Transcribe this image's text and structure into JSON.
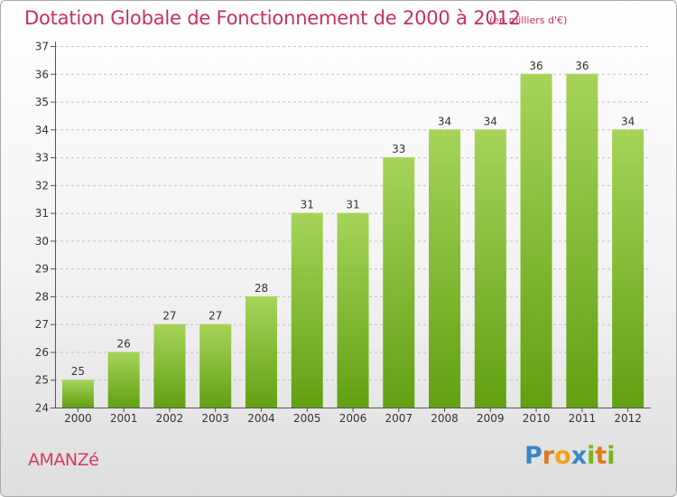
{
  "header": {
    "title": "Dotation Globale de Fonctionnement de 2000 à 2012",
    "subtitle": "(en milliers d'€)"
  },
  "footer": {
    "commune": "AMANZé",
    "logo_text": "Proxiti",
    "logo_letters": [
      {
        "ch": "P",
        "color": "#3a86c8"
      },
      {
        "ch": "r",
        "color": "#e07a1e"
      },
      {
        "ch": "o",
        "color": "#f0a21a"
      },
      {
        "ch": "x",
        "color": "#3a86c8"
      },
      {
        "ch": "i",
        "color": "#7ab51d"
      },
      {
        "ch": "t",
        "color": "#e07a1e"
      },
      {
        "ch": "i",
        "color": "#7ab51d"
      }
    ]
  },
  "colors": {
    "bar_top": "#a6d45a",
    "bar_bottom": "#62a012",
    "title": "#c8315a"
  },
  "chart_data": {
    "type": "bar",
    "title": "Dotation Globale de Fonctionnement de 2000 à 2012",
    "subtitle": "(en milliers d'€)",
    "categories": [
      "2000",
      "2001",
      "2002",
      "2003",
      "2004",
      "2005",
      "2006",
      "2007",
      "2008",
      "2009",
      "2010",
      "2011",
      "2012"
    ],
    "values": [
      25,
      26,
      27,
      27,
      28,
      31,
      31,
      33,
      34,
      34,
      36,
      36,
      34
    ],
    "ylim": [
      24,
      37
    ],
    "yticks": [
      24,
      25,
      26,
      27,
      28,
      29,
      30,
      31,
      32,
      33,
      34,
      35,
      36,
      37
    ],
    "xlabel": "",
    "ylabel": "",
    "grid": true,
    "grid_style": "dashed horizontal",
    "legend": "none"
  }
}
